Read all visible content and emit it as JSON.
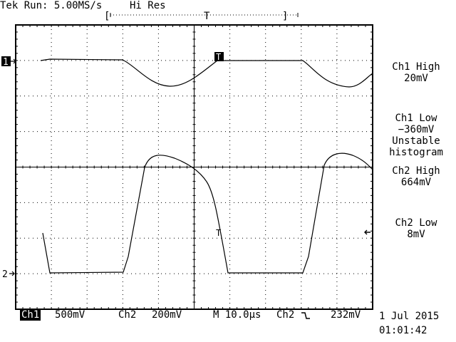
{
  "header": {
    "status": "Tek Run: 5.00MS/s",
    "mode": "Hi Res",
    "record_left_bracket": "[",
    "record_trigger_marker": "T",
    "record_right_bracket": "]"
  },
  "markers": {
    "ch1_ground": "1",
    "ch2_ground": "2",
    "trigger_point": "T"
  },
  "measurements": [
    {
      "label": "Ch1 High",
      "value": "20mV"
    },
    {
      "label": "Ch1 Low",
      "value": "−360mV",
      "note1": "Unstable",
      "note2": "histogram"
    },
    {
      "label": "Ch2 High",
      "value": "664mV"
    },
    {
      "label": "Ch2 Low",
      "value": "8mV"
    }
  ],
  "footer": {
    "ch1_label": "Ch1",
    "ch1_scale": "500mV",
    "ch2_label": "Ch2",
    "ch2_scale": "200mV",
    "timebase": "M 10.0µs",
    "trigger_source": "Ch2",
    "trigger_slope_icon": "falling-edge-icon",
    "trigger_level": "232mV",
    "date": "1 Jul 2015",
    "time": "01:01:42"
  },
  "colors": {
    "background": "#ffffff",
    "trace": "#000000",
    "graticule": "#000000"
  }
}
